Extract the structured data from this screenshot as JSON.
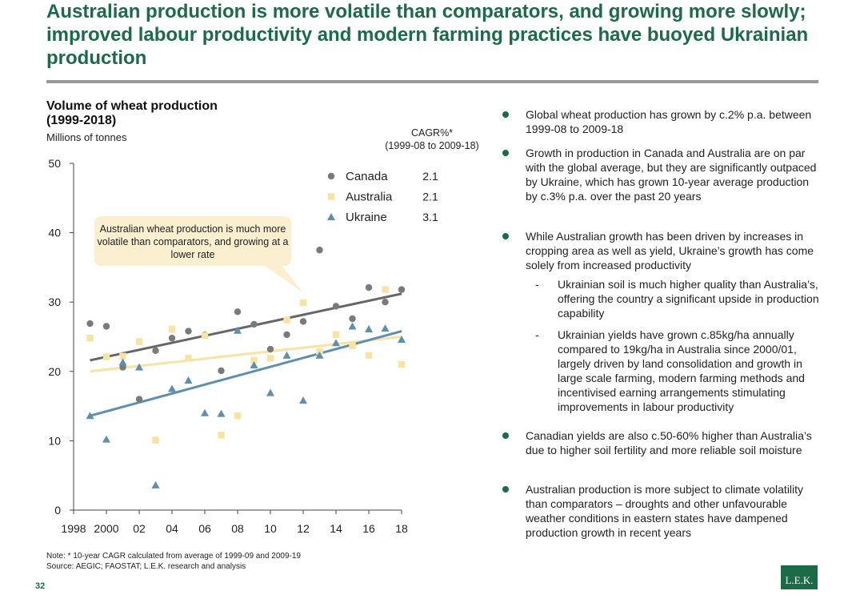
{
  "slide": {
    "title": "Australian production is more volatile than comparators, and growing more slowly; improved labour productivity and modern farming practices have buoyed Ukrainian production",
    "page_number": "32",
    "logo_text": "L.E.K.",
    "note": "Note:    * 10-year CAGR calculated from average of 1999-09 and 2009-19",
    "source": "Source: AEGIC; FAOSTAT; L.E.K. research and analysis"
  },
  "chart_header": {
    "title_line1": "Volume of wheat production",
    "title_line2": "(1999-2018)",
    "units": "Millions of tonnes",
    "cagr_label": "CAGR%*",
    "cagr_period": "(1999-08 to 2009-18)"
  },
  "callout": {
    "text": "Australian wheat production is much more volatile than comparators, and growing at a lower rate"
  },
  "bullets": [
    {
      "text": "Global wheat production has grown by c.2% p.a. between 1999-08 to 2009-18"
    },
    {
      "text": "Growth in production in Canada and Australia are on par with the global average, but they are significantly outpaced by Ukraine, which has grown 10-year average production by c.3% p.a. over the past 20 years"
    },
    {
      "text": "While Australian growth has been driven by increases in cropping area as well as yield, Ukraine’s growth has come solely from increased productivity",
      "sub": [
        {
          "dash": "-",
          "text": "Ukrainian soil is much higher quality than Australia’s, offering the country a significant upside in production capability"
        },
        {
          "dash": "-",
          "text": "Ukrainian yields have grown c.85kg/ha annually compared to 19kg/ha in Australia since 2000/01, largely driven by land consolidation and growth in large scale farming, modern farming methods and incentivised earning arrangements stimulating improvements in labour productivity"
        }
      ]
    },
    {
      "text": "Canadian yields are also c.50-60% higher than Australia’s due to higher soil fertility and more reliable soil moisture"
    },
    {
      "text": "Australian production is more subject to climate volatility than comparators – droughts and other unfavourable weather conditions in eastern states have dampened production growth in recent years"
    }
  ],
  "chart_data": {
    "type": "scatter",
    "title": "Volume of wheat production (1999-2018)",
    "ylabel": "Millions of tonnes",
    "xlim": [
      1998,
      2018
    ],
    "ylim": [
      0,
      50
    ],
    "x_ticks": [
      1998,
      2000,
      2002,
      2004,
      2006,
      2008,
      2010,
      2012,
      2014,
      2016,
      2018
    ],
    "x_tick_labels": [
      "1998",
      "2000",
      "02",
      "04",
      "06",
      "08",
      "10",
      "12",
      "14",
      "16",
      "18"
    ],
    "y_ticks": [
      0,
      10,
      20,
      30,
      40,
      50
    ],
    "y_tick_labels": [
      "0",
      "10",
      "20",
      "30",
      "40",
      "50"
    ],
    "grid": false,
    "legend_position": "top-right",
    "colors": {
      "Canada": "#7a7a7a",
      "Australia": "#f8e3a0",
      "Ukraine": "#5f8fae"
    },
    "trend_colors": {
      "Canada": "#666666",
      "Australia": "#f7e3a4",
      "Ukraine": "#5f8fae"
    },
    "series": [
      {
        "name": "Canada",
        "marker": "circle",
        "cagr": "2.1",
        "x": [
          1999,
          2000,
          2001,
          2002,
          2003,
          2004,
          2005,
          2006,
          2007,
          2008,
          2009,
          2010,
          2011,
          2012,
          2013,
          2014,
          2015,
          2016,
          2017,
          2018
        ],
        "values": [
          26.9,
          26.5,
          20.6,
          16.0,
          23.0,
          24.8,
          25.8,
          25.3,
          20.1,
          28.6,
          26.8,
          23.2,
          25.3,
          27.2,
          37.5,
          29.4,
          27.6,
          32.1,
          30.0,
          31.8
        ],
        "trend": [
          [
            1999,
            21.6
          ],
          [
            2018,
            31.2
          ]
        ]
      },
      {
        "name": "Australia",
        "marker": "square",
        "cagr": "2.1",
        "x": [
          1999,
          2000,
          2001,
          2002,
          2003,
          2004,
          2005,
          2006,
          2007,
          2008,
          2009,
          2010,
          2011,
          2012,
          2013,
          2014,
          2015,
          2016,
          2017,
          2018
        ],
        "values": [
          24.8,
          22.1,
          22.2,
          24.3,
          10.1,
          26.1,
          21.9,
          25.2,
          10.8,
          13.6,
          21.6,
          21.9,
          27.4,
          29.9,
          22.9,
          25.3,
          23.7,
          22.3,
          31.8,
          21.0
        ],
        "trend": [
          [
            1999,
            20.0
          ],
          [
            2018,
            25.0
          ]
        ]
      },
      {
        "name": "Ukraine",
        "marker": "triangle",
        "cagr": "3.1",
        "x": [
          1999,
          2000,
          2001,
          2002,
          2003,
          2004,
          2005,
          2006,
          2007,
          2008,
          2009,
          2010,
          2011,
          2012,
          2013,
          2014,
          2015,
          2016,
          2017,
          2018
        ],
        "values": [
          13.6,
          10.2,
          21.3,
          20.6,
          3.6,
          17.5,
          18.7,
          14.0,
          13.9,
          25.9,
          20.9,
          16.9,
          22.3,
          15.8,
          22.3,
          24.1,
          26.5,
          26.1,
          26.2,
          24.6
        ],
        "trend": [
          [
            1999,
            13.6
          ],
          [
            2018,
            25.8
          ]
        ]
      }
    ]
  }
}
